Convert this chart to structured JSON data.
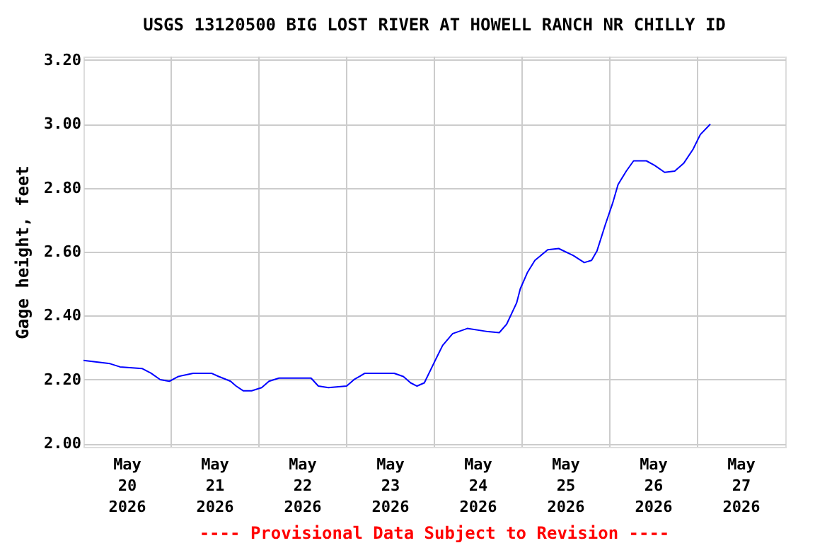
{
  "chart_data": {
    "type": "line",
    "title": "USGS 13120500 BIG LOST RIVER AT HOWELL RANCH NR CHILLY ID",
    "ylabel": "Gage height, feet",
    "annotations": [
      "---- Provisional Data Subject to Revision ----"
    ],
    "x": [
      "2026-05-20T00:00",
      "2026-05-20T07:15",
      "2026-05-20T10:00",
      "2026-05-20T16:00",
      "2026-05-20T18:30",
      "2026-05-20T21:00",
      "2026-05-20T23:30",
      "2026-05-21T02:00",
      "2026-05-21T06:00",
      "2026-05-21T11:00",
      "2026-05-21T13:00",
      "2026-05-21T16:15",
      "2026-05-21T17:45",
      "2026-05-21T19:45",
      "2026-05-21T22:00",
      "2026-05-22T00:45",
      "2026-05-22T02:45",
      "2026-05-22T05:30",
      "2026-05-22T14:15",
      "2026-05-22T16:15",
      "2026-05-22T19:00",
      "2026-05-23T00:00",
      "2026-05-23T02:00",
      "2026-05-23T05:00",
      "2026-05-23T13:00",
      "2026-05-23T15:30",
      "2026-05-23T17:30",
      "2026-05-23T19:15",
      "2026-05-23T21:15",
      "2026-05-24T00:00",
      "2026-05-24T02:15",
      "2026-05-24T05:00",
      "2026-05-24T09:00",
      "2026-05-24T14:45",
      "2026-05-24T17:45",
      "2026-05-24T19:45",
      "2026-05-24T22:30",
      "2026-05-24T23:30",
      "2026-05-25T01:30",
      "2026-05-25T03:30",
      "2026-05-25T07:00",
      "2026-05-25T10:00",
      "2026-05-25T14:00",
      "2026-05-25T17:00",
      "2026-05-25T19:00",
      "2026-05-25T20:30",
      "2026-05-25T22:45",
      "2026-05-26T00:45",
      "2026-05-26T02:15",
      "2026-05-26T04:30",
      "2026-05-26T06:30",
      "2026-05-26T10:00",
      "2026-05-26T12:15",
      "2026-05-26T15:00",
      "2026-05-26T17:45",
      "2026-05-26T20:15",
      "2026-05-26T22:45",
      "2026-05-27T00:45",
      "2026-05-27T03:30"
    ],
    "series": [
      {
        "color": "#0000ff",
        "values": [
          2.26,
          2.25,
          2.24,
          2.235,
          2.22,
          2.2,
          2.195,
          2.21,
          2.22,
          2.22,
          2.21,
          2.195,
          2.18,
          2.165,
          2.165,
          2.175,
          2.195,
          2.205,
          2.205,
          2.18,
          2.175,
          2.18,
          2.2,
          2.22,
          2.22,
          2.21,
          2.19,
          2.18,
          2.19,
          2.255,
          2.307,
          2.344,
          2.36,
          2.35,
          2.347,
          2.373,
          2.44,
          2.484,
          2.536,
          2.573,
          2.606,
          2.61,
          2.588,
          2.566,
          2.573,
          2.603,
          2.684,
          2.751,
          2.81,
          2.852,
          2.884,
          2.884,
          2.87,
          2.848,
          2.852,
          2.877,
          2.92,
          2.966,
          2.999
        ]
      }
    ],
    "xlim": [
      "2026-05-20T00:00",
      "2026-05-28T00:00"
    ],
    "xticks": [
      {
        "value": "2026-05-20T12:00",
        "label": "May 20 2026"
      },
      {
        "value": "2026-05-21T12:00",
        "label": "May 21 2026"
      },
      {
        "value": "2026-05-22T12:00",
        "label": "May 22 2026"
      },
      {
        "value": "2026-05-23T12:00",
        "label": "May 23 2026"
      },
      {
        "value": "2026-05-24T12:00",
        "label": "May 24 2026"
      },
      {
        "value": "2026-05-25T12:00",
        "label": "May 25 2026"
      },
      {
        "value": "2026-05-26T12:00",
        "label": "May 26 2026"
      },
      {
        "value": "2026-05-27T12:00",
        "label": "May 27 2026"
      },
      {
        "value": "2026-05-21T00:00",
        "label": null
      },
      {
        "value": "2026-05-22T00:00",
        "label": null
      },
      {
        "value": "2026-05-23T00:00",
        "label": null
      },
      {
        "value": "2026-05-24T00:00",
        "label": null
      },
      {
        "value": "2026-05-25T00:00",
        "label": null
      },
      {
        "value": "2026-05-26T00:00",
        "label": null
      },
      {
        "value": "2026-05-27T00:00",
        "label": null
      }
    ],
    "ylim": [
      1.99,
      3.21
    ],
    "yticks": [
      {
        "value": 2.0,
        "label": "2.00"
      },
      {
        "value": 2.2,
        "label": "2.20"
      },
      {
        "value": 2.4,
        "label": "2.40"
      },
      {
        "value": 2.6,
        "label": "2.60"
      },
      {
        "value": 2.8,
        "label": "2.80"
      },
      {
        "value": 3.0,
        "label": "3.00"
      },
      {
        "value": 3.2,
        "label": "3.20"
      }
    ],
    "grid": true
  }
}
